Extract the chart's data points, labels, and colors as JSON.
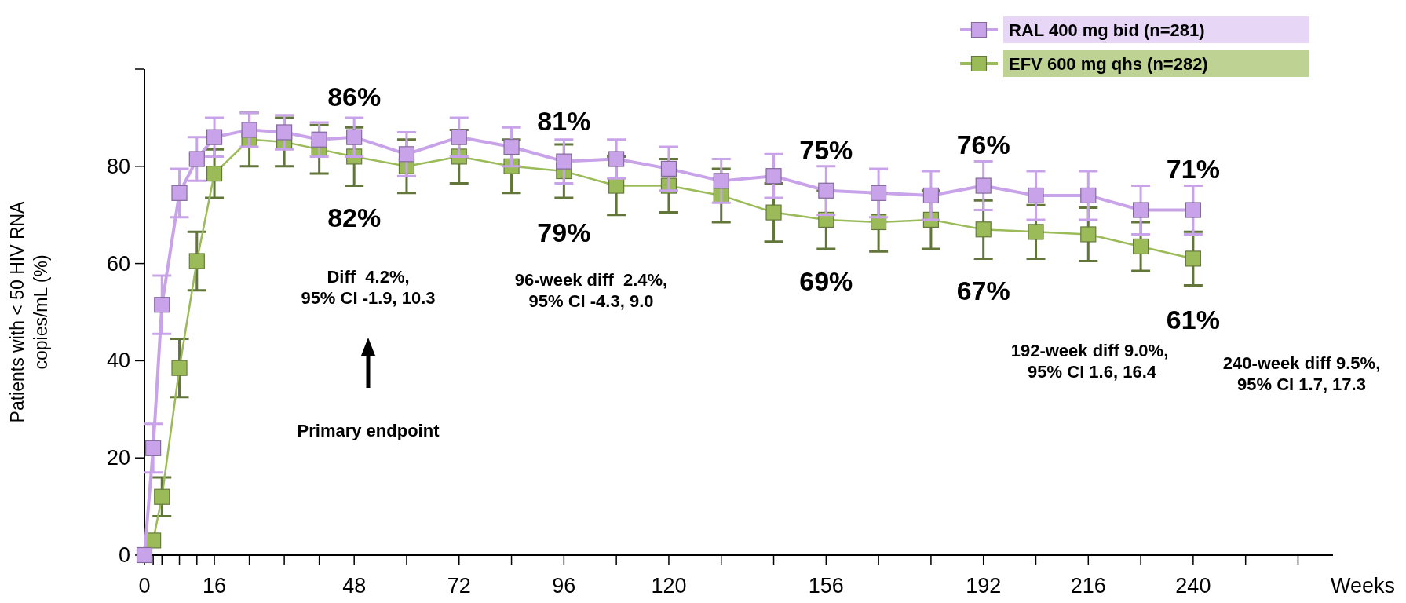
{
  "chart_data": {
    "type": "line",
    "xlabel": "Weeks",
    "ylabel": "Patients with < 50 HIV RNA\ncopies/mL (%)",
    "x": [
      0,
      2,
      4,
      8,
      12,
      16,
      24,
      32,
      40,
      48,
      60,
      72,
      84,
      96,
      108,
      120,
      132,
      144,
      156,
      168,
      180,
      192,
      204,
      216,
      228,
      240
    ],
    "xlim": [
      0,
      272
    ],
    "xticks": [
      0,
      {
        "value": 2,
        "label": null
      },
      {
        "value": 4,
        "label": null
      },
      {
        "value": 8,
        "label": null
      },
      {
        "value": 12,
        "label": null
      },
      16,
      {
        "value": 24,
        "label": null
      },
      {
        "value": 32,
        "label": null
      },
      {
        "value": 40,
        "label": null
      },
      48,
      {
        "value": 60,
        "label": null
      },
      72,
      {
        "value": 84,
        "label": null
      },
      96,
      {
        "value": 108,
        "label": null
      },
      120,
      {
        "value": 132,
        "label": null
      },
      {
        "value": 144,
        "label": null
      },
      156,
      {
        "value": 168,
        "label": null
      },
      {
        "value": 180,
        "label": null
      },
      192,
      {
        "value": 204,
        "label": null
      },
      216,
      {
        "value": 228,
        "label": null
      },
      240,
      {
        "value": 252,
        "label": null
      },
      {
        "value": 264,
        "label": null
      }
    ],
    "ylim": [
      0,
      100
    ],
    "yticks": [
      0,
      20,
      40,
      60,
      80,
      {
        "value": 100,
        "label": null
      }
    ],
    "grid": false,
    "legend": "top right",
    "marker": "square",
    "line_style": "solid",
    "series": [
      {
        "name": "RAL 400 mg bid (n=281)",
        "color": "#c9a3ea",
        "values": [
          0,
          22,
          51.5,
          74.5,
          81.5,
          86,
          87.5,
          87,
          85.5,
          86,
          82.5,
          86,
          84,
          81,
          81.5,
          79.5,
          77,
          78,
          75,
          74.5,
          74,
          76,
          74,
          74,
          71,
          71
        ],
        "errors": [
          null,
          5,
          6,
          5,
          4.5,
          4,
          3.5,
          3.5,
          3.5,
          4,
          4.5,
          4,
          4,
          4.5,
          4,
          4.5,
          4.5,
          4.5,
          5,
          5,
          5,
          5,
          5,
          5,
          5,
          5
        ]
      },
      {
        "name": "EFV 600 mg qhs (n=282)",
        "color": "#9bbb59",
        "values": [
          null,
          3,
          12,
          38.5,
          60.5,
          78.5,
          85.5,
          85,
          83.5,
          82,
          80,
          82,
          80,
          79,
          76,
          76,
          74,
          70.5,
          69,
          68.5,
          69,
          67,
          66.5,
          66,
          63.5,
          61
        ],
        "errors": [
          null,
          null,
          4,
          6,
          6,
          5,
          5.5,
          5,
          5,
          6,
          5.5,
          5.5,
          5.5,
          5.5,
          6,
          5.5,
          5.5,
          6,
          6,
          6,
          6,
          6,
          5.5,
          5.5,
          5,
          5.5
        ]
      }
    ],
    "annotations": [
      {
        "text": "86%",
        "x": 48,
        "y": 86
      },
      {
        "text": "82%",
        "x": 48,
        "y": 82
      },
      "Diff  4.2%,\n95% CI -1.9, 10.3",
      "Primary endpoint",
      {
        "text": "81%",
        "x": 96,
        "y": 81
      },
      {
        "text": "79%",
        "x": 96,
        "y": 79
      },
      "96-week diff  2.4%,\n95% CI -4.3, 9.0",
      {
        "text": "75%",
        "x": 156,
        "y": 75
      },
      {
        "text": "69%",
        "x": 156,
        "y": 69
      },
      {
        "text": "76%",
        "x": 192,
        "y": 76
      },
      {
        "text": "67%",
        "x": 192,
        "y": 67
      },
      "192-week diff 9.0%,\n 95% CI 1.6, 16.4",
      {
        "text": "71%",
        "x": 240,
        "y": 71
      },
      {
        "text": "61%",
        "x": 240,
        "y": 61
      },
      "240-week diff 9.5%,\n95% CI 1.7, 17.3"
    ]
  }
}
